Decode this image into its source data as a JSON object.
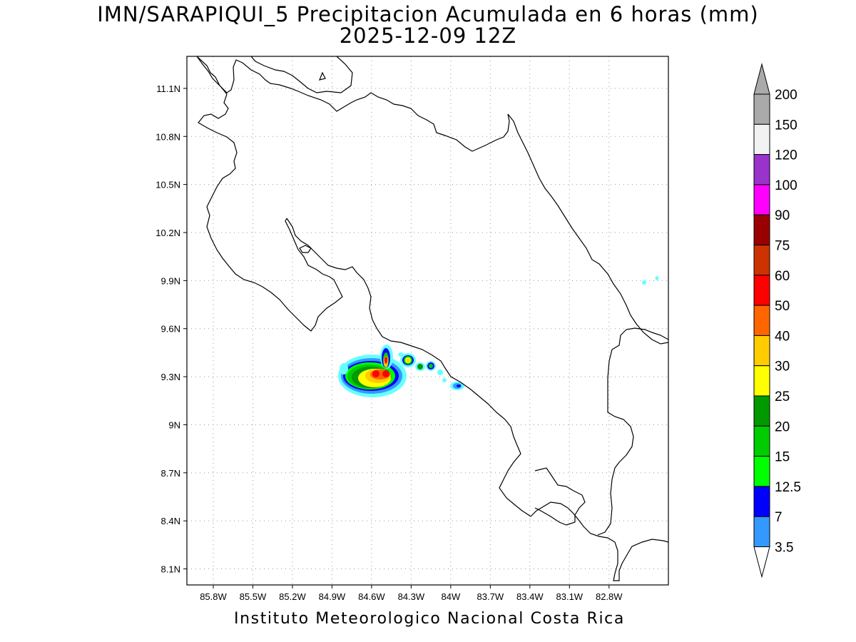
{
  "title_line1": "IMN/SARAPIQUI_5 Precipitacion Acumulada en 6 horas (mm)",
  "title_line2": "2025-12-09 12Z",
  "footer": "Instituto Meteorologico Nacional Costa Rica",
  "map": {
    "lon_range": [
      -86.0,
      -82.35
    ],
    "lat_range": [
      8.0,
      11.3
    ],
    "lat_ticks": [
      {
        "value": 11.1,
        "label": "11.1N"
      },
      {
        "value": 10.8,
        "label": "10.8N"
      },
      {
        "value": 10.5,
        "label": "10.5N"
      },
      {
        "value": 10.2,
        "label": "10.2N"
      },
      {
        "value": 9.9,
        "label": "9.9N"
      },
      {
        "value": 9.6,
        "label": "9.6N"
      },
      {
        "value": 9.3,
        "label": "9.3N"
      },
      {
        "value": 9.0,
        "label": "9N"
      },
      {
        "value": 8.7,
        "label": "8.7N"
      },
      {
        "value": 8.4,
        "label": "8.4N"
      },
      {
        "value": 8.1,
        "label": "8.1N"
      }
    ],
    "lon_ticks": [
      {
        "value": -85.8,
        "label": "85.8W"
      },
      {
        "value": -85.5,
        "label": "85.5W"
      },
      {
        "value": -85.2,
        "label": "85.2W"
      },
      {
        "value": -84.9,
        "label": "84.9W"
      },
      {
        "value": -84.6,
        "label": "84.6W"
      },
      {
        "value": -84.3,
        "label": "84.3W"
      },
      {
        "value": -84.0,
        "label": "84W"
      },
      {
        "value": -83.7,
        "label": "83.7W"
      },
      {
        "value": -83.4,
        "label": "83.4W"
      },
      {
        "value": -83.1,
        "label": "83.1W"
      },
      {
        "value": -82.8,
        "label": "82.8W"
      }
    ],
    "grid": "dotted"
  },
  "colorbar": {
    "levels": [
      {
        "label": "3.5",
        "color": "#66ffff"
      },
      {
        "label": "7",
        "color": "#3399ff"
      },
      {
        "label": "12.5",
        "color": "#0000ff"
      },
      {
        "label": "15",
        "color": "#00ff00"
      },
      {
        "label": "20",
        "color": "#00cc00"
      },
      {
        "label": "25",
        "color": "#009900"
      },
      {
        "label": "30",
        "color": "#ffff00"
      },
      {
        "label": "40",
        "color": "#ffcc00"
      },
      {
        "label": "50",
        "color": "#ff6600"
      },
      {
        "label": "60",
        "color": "#ff0000"
      },
      {
        "label": "75",
        "color": "#cc3300"
      },
      {
        "label": "90",
        "color": "#990000"
      },
      {
        "label": "100",
        "color": "#ff00ff"
      },
      {
        "label": "120",
        "color": "#9933cc"
      },
      {
        "label": "150",
        "color": "#f2f2f2"
      },
      {
        "label": "200",
        "color": "#aaaaaa"
      }
    ],
    "below_color": "#ffffff",
    "above_color": "#aaaaaa"
  },
  "precipitation_areas": [
    {
      "lon": -84.58,
      "lat": 9.33,
      "max_mm": 75
    },
    {
      "lon": -84.4,
      "lat": 9.4,
      "max_mm": 40
    },
    {
      "lon": -84.25,
      "lat": 9.37,
      "max_mm": 25
    },
    {
      "lon": -84.03,
      "lat": 9.24,
      "max_mm": 12.5
    },
    {
      "lon": -84.85,
      "lat": 9.35,
      "max_mm": 3.5
    },
    {
      "lon": -82.7,
      "lat": 9.9,
      "max_mm": 3.5
    }
  ]
}
